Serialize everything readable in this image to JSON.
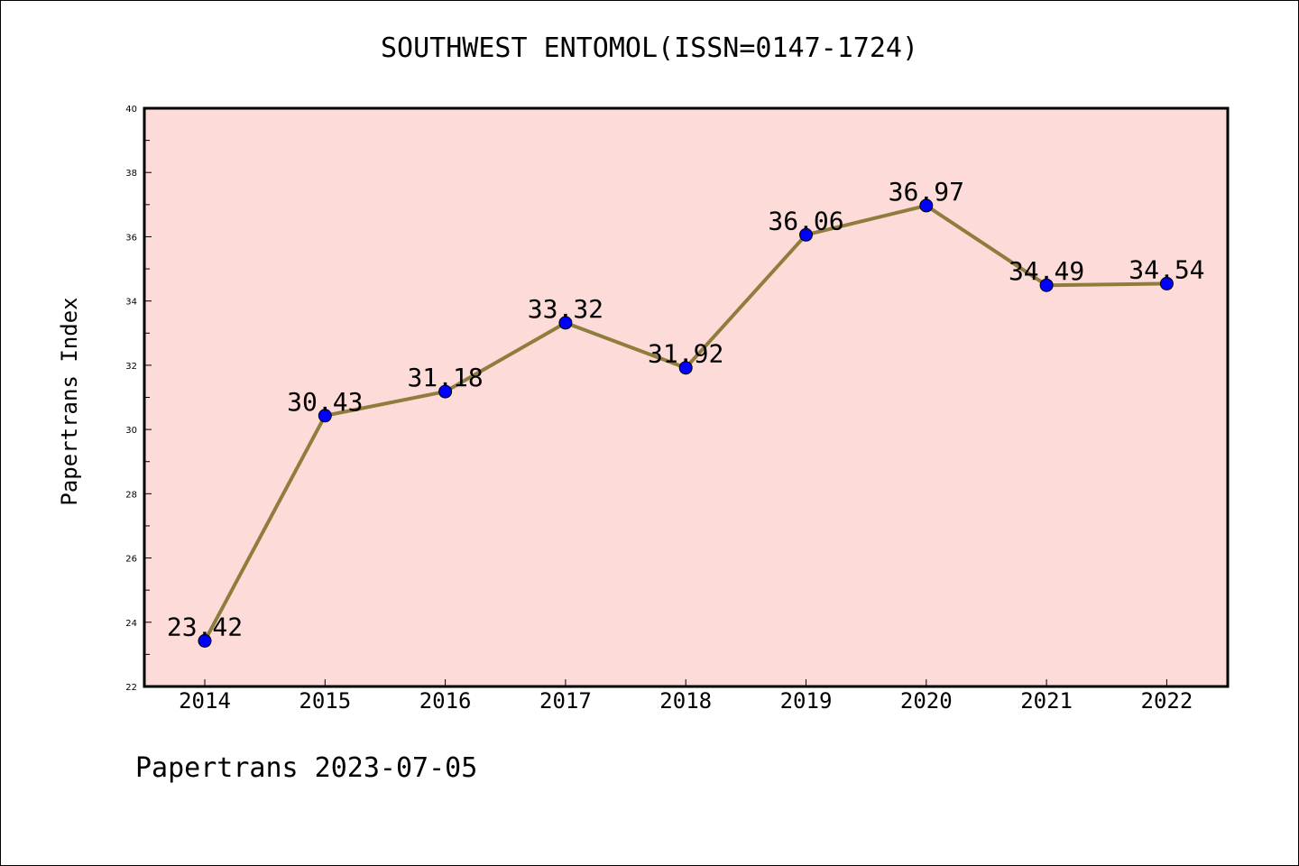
{
  "title": "SOUTHWEST ENTOMOL(ISSN=0147-1724)",
  "footer": "Papertrans 2023-07-05",
  "chart_data": {
    "type": "line",
    "title": "SOUTHWEST ENTOMOL(ISSN=0147-1724)",
    "xlabel": "",
    "ylabel": "Papertrans Index",
    "categories": [
      "2014",
      "2015",
      "2016",
      "2017",
      "2018",
      "2019",
      "2020",
      "2021",
      "2022"
    ],
    "series": [
      {
        "values": [
          23.42,
          30.43,
          31.18,
          33.32,
          31.92,
          36.06,
          36.97,
          34.49,
          34.54
        ],
        "data_labels": [
          "23.42",
          "30.43",
          "31.18",
          "33.32",
          "31.92",
          "36.06",
          "36.97",
          "34.49",
          "34.54"
        ]
      }
    ],
    "ylim": [
      22,
      40
    ],
    "yticks": [
      "22",
      "24",
      "26",
      "28",
      "30",
      "32",
      "34",
      "36",
      "38",
      "40"
    ],
    "grid": false,
    "legend": "none",
    "colors": {
      "plot_background": "#fddbd8",
      "line": "#8f7d3e",
      "marker": "#0000ff",
      "marker_edge": "#000000"
    }
  }
}
